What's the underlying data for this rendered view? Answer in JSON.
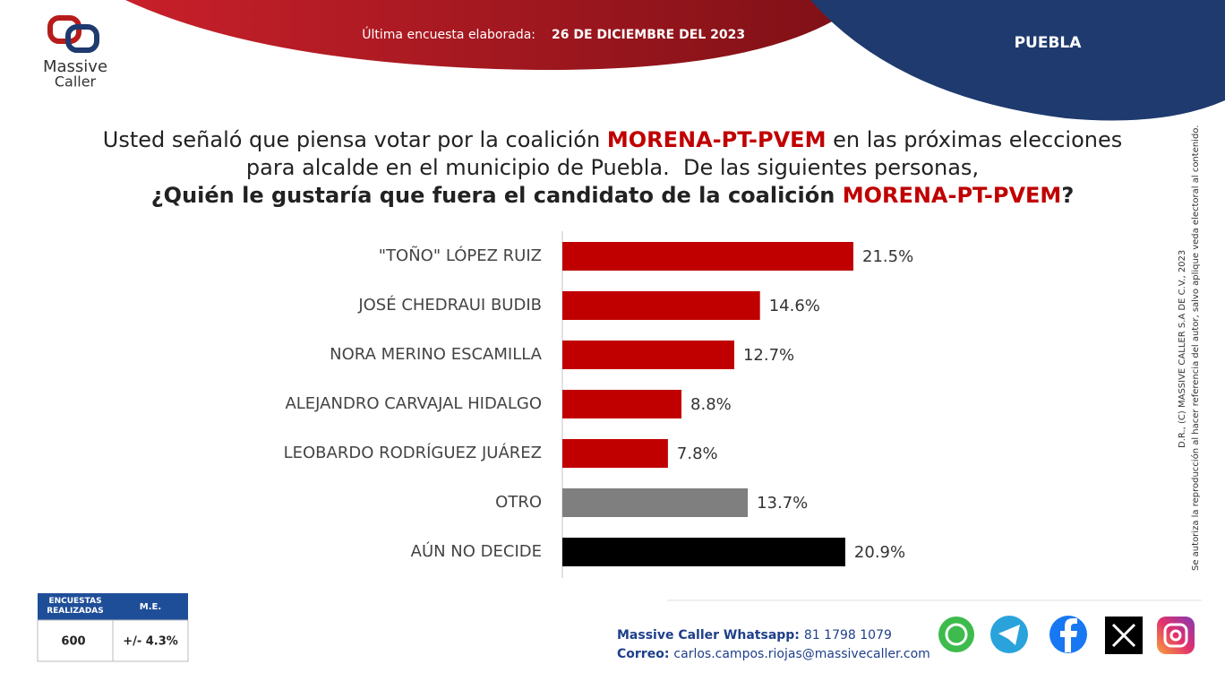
{
  "header": {
    "logo_line1": "Massive",
    "logo_line2": "Caller",
    "survey_label": "Última encuesta elaborada:",
    "survey_date": "26 DE DICIEMBRE DEL 2023",
    "region": "PUEBLA"
  },
  "question": {
    "lines": [
      {
        "bold": false,
        "parts": [
          {
            "text": "Usted señaló que piensa votar por la coalición ",
            "highlight": false
          },
          {
            "text": "MORENA-PT-PVEM",
            "highlight": true
          },
          {
            "text": " en las próximas elecciones",
            "highlight": false
          }
        ]
      },
      {
        "bold": false,
        "parts": [
          {
            "text": "para alcalde en el municipio de Puebla.  De las siguientes personas,",
            "highlight": false
          }
        ]
      },
      {
        "bold": true,
        "parts": [
          {
            "text": "¿Quién le gustaría que fuera el candidato de la coalición ",
            "highlight": false
          },
          {
            "text": "MORENA-PT-PVEM",
            "highlight": true
          },
          {
            "text": "?",
            "highlight": false
          }
        ]
      }
    ]
  },
  "chart_data": {
    "type": "bar",
    "orientation": "horizontal",
    "categories": [
      "\"TOÑO\" LÓPEZ RUIZ",
      "JOSÉ CHEDRAUI BUDIB",
      "NORA MERINO ESCAMILLA",
      "ALEJANDRO CARVAJAL HIDALGO",
      "LEOBARDO RODRÍGUEZ JUÁREZ",
      "OTRO",
      "AÚN NO DECIDE"
    ],
    "values": [
      21.5,
      14.6,
      12.7,
      8.8,
      7.8,
      13.7,
      20.9
    ],
    "value_labels": [
      "21.5%",
      "14.6%",
      "12.7%",
      "8.8%",
      "7.8%",
      "13.7%",
      "20.9%"
    ],
    "colors": [
      "#c00000",
      "#c00000",
      "#c00000",
      "#c00000",
      "#c00000",
      "#7f7f7f",
      "#000000"
    ]
  },
  "sample": {
    "headers": [
      "ENCUESTAS REALIZADAS",
      "M.E."
    ],
    "values": [
      "600",
      "+/- 4.3%"
    ]
  },
  "footer": {
    "whatsapp_label": "Massive Caller Whatsapp:",
    "whatsapp": "81 1798 1079",
    "email_label": "Correo:",
    "email": "carlos.campos.riojas@massivecaller.com"
  },
  "copyright": [
    "D.R., (C) MASSIVE CALLER S.A DE C.V., 2023",
    "Se autoriza la reproducción al hacer referencia del autor, salvo aplique veda electoral al contenido."
  ]
}
